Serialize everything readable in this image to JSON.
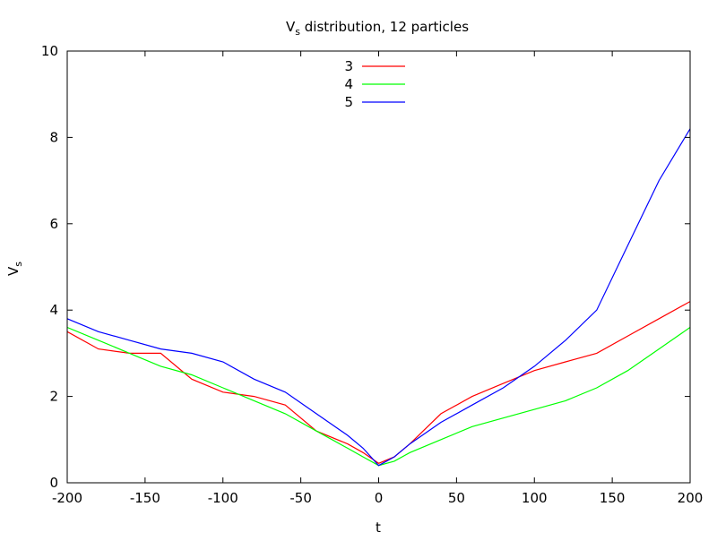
{
  "chart_data": {
    "type": "line",
    "title": "Vs distribution, 12 particles",
    "title_parts": {
      "main": "V",
      "sub": "s",
      "rest": " distribution, 12 particles"
    },
    "xlabel": "t",
    "ylabel": "Vs",
    "ylabel_parts": {
      "main": "V",
      "sub": "s"
    },
    "xlim": [
      -200,
      200
    ],
    "ylim": [
      0,
      10
    ],
    "xticks": [
      -200,
      -150,
      -100,
      -50,
      0,
      50,
      100,
      150,
      200
    ],
    "yticks": [
      0,
      2,
      4,
      6,
      8,
      10
    ],
    "grid": false,
    "legend_position": "top-center",
    "series": [
      {
        "name": "3",
        "color": "#ff0000",
        "x": [
          -200,
          -180,
          -160,
          -140,
          -120,
          -100,
          -80,
          -60,
          -40,
          -20,
          -10,
          0,
          10,
          20,
          40,
          60,
          80,
          100,
          120,
          140,
          160,
          180,
          200
        ],
        "y": [
          3.5,
          3.1,
          3.0,
          3.0,
          2.4,
          2.1,
          2.0,
          1.8,
          1.2,
          0.9,
          0.7,
          0.45,
          0.6,
          0.9,
          1.6,
          2.0,
          2.3,
          2.6,
          2.8,
          3.0,
          3.4,
          3.8,
          4.2
        ]
      },
      {
        "name": "4",
        "color": "#00ff00",
        "x": [
          -200,
          -180,
          -160,
          -140,
          -120,
          -100,
          -80,
          -60,
          -40,
          -20,
          -10,
          0,
          10,
          20,
          40,
          60,
          80,
          100,
          120,
          140,
          160,
          180,
          200
        ],
        "y": [
          3.6,
          3.3,
          3.0,
          2.7,
          2.5,
          2.2,
          1.9,
          1.6,
          1.2,
          0.8,
          0.6,
          0.4,
          0.5,
          0.7,
          1.0,
          1.3,
          1.5,
          1.7,
          1.9,
          2.2,
          2.6,
          3.1,
          3.6
        ]
      },
      {
        "name": "5",
        "color": "#0000ff",
        "x": [
          -200,
          -180,
          -160,
          -140,
          -120,
          -100,
          -80,
          -60,
          -40,
          -20,
          -10,
          0,
          10,
          20,
          40,
          60,
          80,
          100,
          120,
          140,
          160,
          180,
          200
        ],
        "y": [
          3.8,
          3.5,
          3.3,
          3.1,
          3.0,
          2.8,
          2.4,
          2.1,
          1.6,
          1.1,
          0.8,
          0.4,
          0.6,
          0.9,
          1.4,
          1.8,
          2.2,
          2.7,
          3.3,
          4.0,
          5.5,
          7.0,
          8.2
        ]
      }
    ]
  }
}
